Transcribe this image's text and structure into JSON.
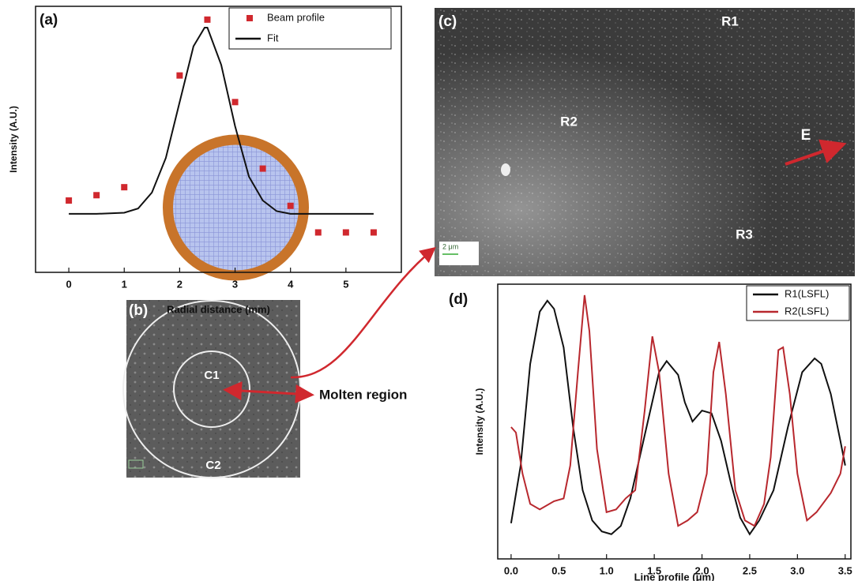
{
  "chart_data": [
    {
      "type": "line",
      "y_label": "Intensity (A.U.)",
      "x_label": "Radial distance (mm)",
      "xlim": [
        -0.6,
        6.0
      ],
      "xticks": [
        0,
        1,
        2,
        3,
        4,
        5
      ],
      "ylim": [
        0,
        1
      ],
      "legend": "top-right",
      "series": [
        {
          "name": "Beam profile",
          "type": "scatter",
          "color": "#d0282e",
          "x": [
            0,
            0.5,
            1,
            2,
            2.5,
            3,
            3.5,
            4,
            4.5,
            5,
            5.5
          ],
          "values": [
            0.27,
            0.29,
            0.32,
            0.74,
            0.95,
            0.64,
            0.39,
            0.25,
            0.15,
            0.15,
            0.15
          ]
        },
        {
          "name": "Fit",
          "type": "line",
          "color": "#111111",
          "x": [
            0,
            0.5,
            1,
            1.25,
            1.5,
            1.75,
            2,
            2.25,
            2.45,
            2.5,
            2.75,
            3,
            3.25,
            3.5,
            3.75,
            4,
            4.5,
            5,
            5.5
          ],
          "values": [
            0.22,
            0.22,
            0.224,
            0.24,
            0.3,
            0.43,
            0.64,
            0.85,
            0.92,
            0.92,
            0.78,
            0.55,
            0.36,
            0.27,
            0.23,
            0.22,
            0.22,
            0.22,
            0.22
          ]
        }
      ]
    },
    {
      "type": "line",
      "y_label": "Intensity (A.U.)",
      "x_label": "Line profile (μm)",
      "xlim": [
        -0.14,
        3.56
      ],
      "ylim": [
        0,
        1
      ],
      "legend": "top-right",
      "xticks": [
        {
          "value": 0,
          "label": "0.0"
        },
        {
          "value": 0.5,
          "label": "0.5"
        },
        {
          "value": 1,
          "label": "1.0"
        },
        {
          "value": 1.5,
          "label": "1.5"
        },
        {
          "value": 2,
          "label": "2.0"
        },
        {
          "value": 2.5,
          "label": "2.5"
        },
        {
          "value": 3,
          "label": "3.0"
        },
        {
          "value": 3.5,
          "label": "3.5"
        }
      ],
      "series": [
        {
          "name": "R1(LSFL)",
          "type": "line",
          "color": "#111111",
          "x": [
            0,
            0.1,
            0.2,
            0.3,
            0.38,
            0.45,
            0.55,
            0.65,
            0.75,
            0.85,
            0.95,
            1.05,
            1.15,
            1.25,
            1.4,
            1.55,
            1.63,
            1.75,
            1.82,
            1.9,
            2.0,
            2.1,
            2.2,
            2.3,
            2.4,
            2.5,
            2.6,
            2.75,
            2.9,
            3.05,
            3.18,
            3.25,
            3.35,
            3.45,
            3.5
          ],
          "values": [
            0.13,
            0.34,
            0.71,
            0.9,
            0.94,
            0.91,
            0.77,
            0.48,
            0.25,
            0.14,
            0.1,
            0.09,
            0.12,
            0.22,
            0.45,
            0.68,
            0.72,
            0.67,
            0.57,
            0.5,
            0.54,
            0.53,
            0.43,
            0.28,
            0.15,
            0.09,
            0.14,
            0.25,
            0.48,
            0.68,
            0.73,
            0.71,
            0.6,
            0.43,
            0.34
          ]
        },
        {
          "name": "R2(LSFL)",
          "type": "line",
          "color": "#b8282e",
          "x": [
            0,
            0.05,
            0.12,
            0.2,
            0.3,
            0.45,
            0.55,
            0.62,
            0.7,
            0.77,
            0.82,
            0.9,
            1.0,
            1.1,
            1.2,
            1.3,
            1.4,
            1.48,
            1.55,
            1.65,
            1.75,
            1.85,
            1.95,
            2.05,
            2.12,
            2.18,
            2.25,
            2.35,
            2.45,
            2.55,
            2.65,
            2.72,
            2.8,
            2.85,
            2.92,
            3.0,
            3.1,
            3.2,
            3.35,
            3.45,
            3.5
          ],
          "values": [
            0.48,
            0.46,
            0.31,
            0.2,
            0.18,
            0.21,
            0.22,
            0.34,
            0.68,
            0.96,
            0.83,
            0.4,
            0.17,
            0.18,
            0.22,
            0.25,
            0.54,
            0.81,
            0.68,
            0.31,
            0.12,
            0.14,
            0.17,
            0.31,
            0.68,
            0.79,
            0.6,
            0.25,
            0.14,
            0.12,
            0.2,
            0.37,
            0.76,
            0.77,
            0.6,
            0.31,
            0.14,
            0.17,
            0.24,
            0.31,
            0.41
          ]
        }
      ]
    }
  ],
  "panels": {
    "a": "(a)",
    "b": "(b)",
    "c": "(c)",
    "d": "(d)"
  },
  "image_b": {
    "inner": "C1",
    "outer": "C2",
    "annotation": "Molten region"
  },
  "image_c": {
    "r1": "R1",
    "r2": "R2",
    "r3": "R3",
    "field": "E",
    "scale_bar": "2 μm"
  }
}
